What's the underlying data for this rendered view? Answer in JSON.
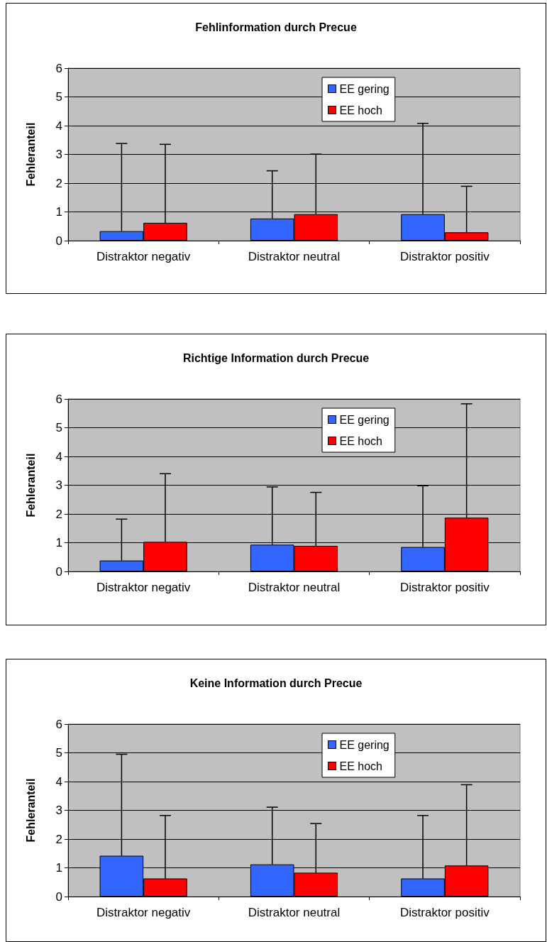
{
  "chart_data": [
    {
      "type": "bar",
      "title": "Fehlinformation durch Precue",
      "ylabel": "Fehleranteil",
      "categories": [
        "Distraktor negativ",
        "Distraktor neutral",
        "Distraktor positiv"
      ],
      "series": [
        {
          "name": "EE gering",
          "color": "#3366ff",
          "values": [
            0.33,
            0.77,
            0.92
          ],
          "errors": [
            [
              0.33,
              3.38
            ],
            [
              0.77,
              2.43
            ],
            [
              0.92,
              4.08
            ]
          ]
        },
        {
          "name": "EE hoch",
          "color": "#ff0000",
          "values": [
            0.62,
            0.92,
            0.29
          ],
          "errors": [
            [
              0.62,
              3.35
            ],
            [
              0.92,
              3.01
            ],
            [
              0.29,
              1.89
            ]
          ]
        }
      ],
      "ylim": [
        0,
        6
      ],
      "yticks": [
        0,
        1,
        2,
        3,
        4,
        5,
        6
      ],
      "grid": "y",
      "legend": "top right"
    },
    {
      "type": "bar",
      "title": "Richtige Information durch Precue",
      "ylabel": "Fehleranteil",
      "categories": [
        "Distraktor negativ",
        "Distraktor neutral",
        "Distraktor positiv"
      ],
      "series": [
        {
          "name": "EE gering",
          "color": "#3366ff",
          "values": [
            0.38,
            0.93,
            0.85
          ],
          "errors": [
            [
              0.38,
              1.82
            ],
            [
              0.93,
              2.94
            ],
            [
              0.85,
              2.98
            ]
          ]
        },
        {
          "name": "EE hoch",
          "color": "#ff0000",
          "values": [
            1.03,
            0.89,
            1.87
          ],
          "errors": [
            [
              1.03,
              3.4
            ],
            [
              0.89,
              2.75
            ],
            [
              1.87,
              5.83
            ]
          ]
        }
      ],
      "ylim": [
        0,
        6
      ],
      "yticks": [
        0,
        1,
        2,
        3,
        4,
        5,
        6
      ],
      "grid": "y",
      "legend": "top right"
    },
    {
      "type": "bar",
      "title": "Keine Information durch Precue",
      "ylabel": "Fehleranteil",
      "categories": [
        "Distraktor negativ",
        "Distraktor neutral",
        "Distraktor positiv"
      ],
      "series": [
        {
          "name": "EE gering",
          "color": "#3366ff",
          "values": [
            1.42,
            1.12,
            0.63
          ],
          "errors": [
            [
              1.42,
              4.95
            ],
            [
              1.12,
              3.11
            ],
            [
              0.63,
              2.82
            ]
          ]
        },
        {
          "name": "EE hoch",
          "color": "#ff0000",
          "values": [
            0.63,
            0.83,
            1.08
          ],
          "errors": [
            [
              0.63,
              2.82
            ],
            [
              0.83,
              2.54
            ],
            [
              1.08,
              3.89
            ]
          ]
        }
      ],
      "ylim": [
        0,
        6
      ],
      "yticks": [
        0,
        1,
        2,
        3,
        4,
        5,
        6
      ],
      "grid": "y",
      "legend": "top right"
    }
  ]
}
